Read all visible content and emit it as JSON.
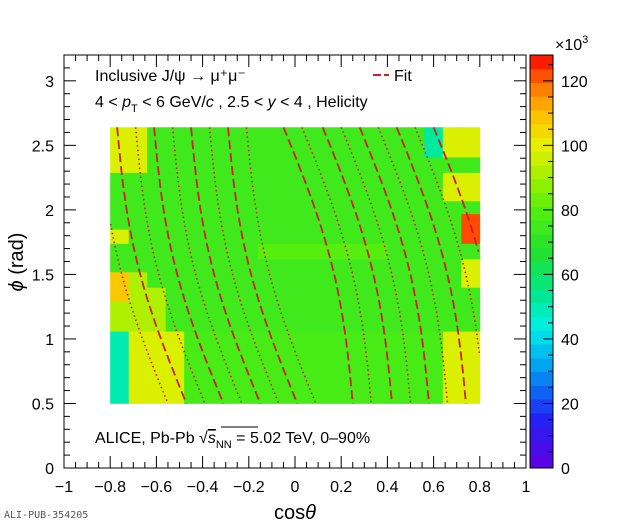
{
  "chart_data": {
    "type": "heatmap",
    "watermark": "ALI-PUB-354205",
    "annotations": {
      "line1": "Inclusive J/ψ → μ⁺μ⁻",
      "line2": "4 < p_T < 6 GeV/c , 2.5 < y < 4 , Helicity",
      "line2_parts": {
        "a": "4 < ",
        "p": "p",
        "pt_sub": "T",
        "b": " < 6 GeV/",
        "c": "c",
        "d": " , 2.5 < ",
        "y": "y",
        "e": " < 4 , Helicity"
      },
      "bottom_parts": {
        "a": "ALICE, Pb-Pb ",
        "s": "s",
        "s_sub": "NN",
        "b": " = 5.02 TeV, 0–90%"
      }
    },
    "legend": {
      "entries": [
        {
          "label": "Fit",
          "color": "#cc2222",
          "style": "dashed"
        }
      ],
      "placement": "top-right"
    },
    "xlabel": "cosθ",
    "xlabel_parts": {
      "a": "cos",
      "b": "θ"
    },
    "ylabel": "ϕ (rad)",
    "ylabel_parts": {
      "a": "ϕ",
      "b": " (rad)"
    },
    "xlim": [
      -1,
      1
    ],
    "ylim": [
      0,
      3.2
    ],
    "x_ticks": [
      "−1",
      "−0.8",
      "−0.6",
      "−0.4",
      "−0.2",
      "0",
      "0.2",
      "0.4",
      "0.6",
      "0.8",
      "1"
    ],
    "x_tick_values": [
      -1,
      -0.8,
      -0.6,
      -0.4,
      -0.2,
      0,
      0.2,
      0.4,
      0.6,
      0.8,
      1
    ],
    "y_ticks": [
      "0",
      "0.5",
      "1",
      "1.5",
      "2",
      "2.5",
      "3"
    ],
    "y_tick_values": [
      0,
      0.5,
      1,
      1.5,
      2,
      2.5,
      3
    ],
    "colorbar": {
      "multiplier": "×10",
      "multiplier_exp": "3",
      "min": 0,
      "max": 128,
      "ticks": [
        "0",
        "20",
        "40",
        "60",
        "80",
        "100",
        "120"
      ],
      "tick_values": [
        0,
        20,
        40,
        60,
        80,
        100,
        120
      ]
    },
    "x_edges": [
      -0.8,
      -0.72,
      -0.64,
      -0.56,
      -0.48,
      -0.4,
      -0.32,
      -0.24,
      -0.16,
      -0.08,
      0,
      0.08,
      0.16,
      0.24,
      0.32,
      0.4,
      0.48,
      0.56,
      0.64,
      0.72,
      0.8
    ],
    "y_edges": [
      0.5,
      0.6,
      0.72,
      0.84,
      0.96,
      1.06,
      1.18,
      1.29,
      1.4,
      1.52,
      1.62,
      1.74,
      1.85,
      1.97,
      2.07,
      2.18,
      2.29,
      2.41,
      2.51,
      2.64
    ],
    "z": [
      [
        50,
        98,
        98,
        98,
        77,
        77,
        77,
        77,
        77,
        77,
        77,
        77,
        77,
        77,
        77,
        77,
        77,
        77,
        98,
        98
      ],
      [
        50,
        98,
        98,
        98,
        77,
        77,
        77,
        77,
        77,
        77,
        77,
        77,
        77,
        77,
        77,
        77,
        77,
        77,
        98,
        98
      ],
      [
        50,
        98,
        98,
        98,
        77,
        77,
        77,
        77,
        77,
        77,
        77,
        77,
        77,
        77,
        77,
        77,
        77,
        77,
        98,
        98
      ],
      [
        50,
        98,
        98,
        98,
        77,
        77,
        77,
        77,
        77,
        77,
        77,
        77,
        77,
        77,
        77,
        77,
        77,
        77,
        98,
        98
      ],
      [
        50,
        98,
        98,
        98,
        77,
        77,
        77,
        77,
        77,
        77,
        77,
        77,
        77,
        77,
        77,
        77,
        77,
        77,
        98,
        98
      ],
      [
        92,
        92,
        92,
        75,
        75,
        75,
        75,
        75,
        75,
        75,
        75,
        75,
        75,
        75,
        75,
        75,
        75,
        75,
        75,
        75
      ],
      [
        92,
        92,
        92,
        75,
        75,
        75,
        75,
        75,
        75,
        75,
        75,
        75,
        75,
        75,
        75,
        75,
        75,
        75,
        75,
        75
      ],
      [
        108,
        92,
        92,
        75,
        75,
        75,
        75,
        75,
        75,
        75,
        75,
        75,
        75,
        75,
        75,
        75,
        75,
        75,
        75,
        75
      ],
      [
        108,
        92,
        75,
        75,
        75,
        75,
        75,
        75,
        75,
        75,
        75,
        75,
        75,
        75,
        75,
        75,
        75,
        75,
        75,
        98
      ],
      [
        75,
        75,
        75,
        75,
        75,
        75,
        75,
        75,
        75,
        75,
        75,
        75,
        75,
        75,
        75,
        75,
        75,
        75,
        75,
        98
      ],
      [
        75,
        75,
        75,
        75,
        75,
        75,
        75,
        75,
        80,
        80,
        80,
        80,
        80,
        80,
        80,
        75,
        75,
        75,
        75,
        75
      ],
      [
        98,
        75,
        75,
        75,
        75,
        75,
        75,
        75,
        75,
        75,
        75,
        75,
        75,
        75,
        75,
        75,
        75,
        75,
        75,
        122
      ],
      [
        75,
        75,
        75,
        75,
        75,
        75,
        75,
        75,
        75,
        75,
        75,
        75,
        75,
        75,
        75,
        75,
        75,
        75,
        75,
        122
      ],
      [
        75,
        75,
        75,
        75,
        75,
        75,
        75,
        75,
        75,
        75,
        75,
        75,
        75,
        75,
        75,
        75,
        75,
        75,
        75,
        75
      ],
      [
        75,
        75,
        75,
        75,
        75,
        75,
        75,
        75,
        75,
        75,
        75,
        75,
        75,
        75,
        75,
        75,
        75,
        75,
        98,
        98
      ],
      [
        75,
        75,
        75,
        75,
        75,
        75,
        75,
        75,
        75,
        75,
        75,
        75,
        75,
        75,
        75,
        75,
        75,
        75,
        98,
        98
      ],
      [
        98,
        98,
        75,
        75,
        75,
        75,
        75,
        75,
        75,
        75,
        75,
        75,
        75,
        75,
        75,
        75,
        75,
        75,
        75,
        75
      ],
      [
        98,
        98,
        75,
        75,
        75,
        75,
        75,
        75,
        75,
        75,
        75,
        75,
        75,
        75,
        75,
        75,
        75,
        52,
        98,
        98
      ],
      [
        98,
        98,
        75,
        75,
        75,
        75,
        75,
        75,
        75,
        75,
        75,
        75,
        75,
        75,
        75,
        75,
        75,
        52,
        98,
        98
      ]
    ],
    "fit_contours": {
      "color": "#cc2222",
      "dashed_offsets": [
        -0.62,
        -0.46,
        -0.3,
        -0.14,
        0.1,
        0.27,
        0.43,
        0.59,
        0.75
      ],
      "dotted_offsets": [
        -0.7,
        -0.54,
        -0.38,
        -0.22,
        -0.06,
        0.18,
        0.35,
        0.51,
        0.67
      ],
      "slope": -0.15
    }
  }
}
